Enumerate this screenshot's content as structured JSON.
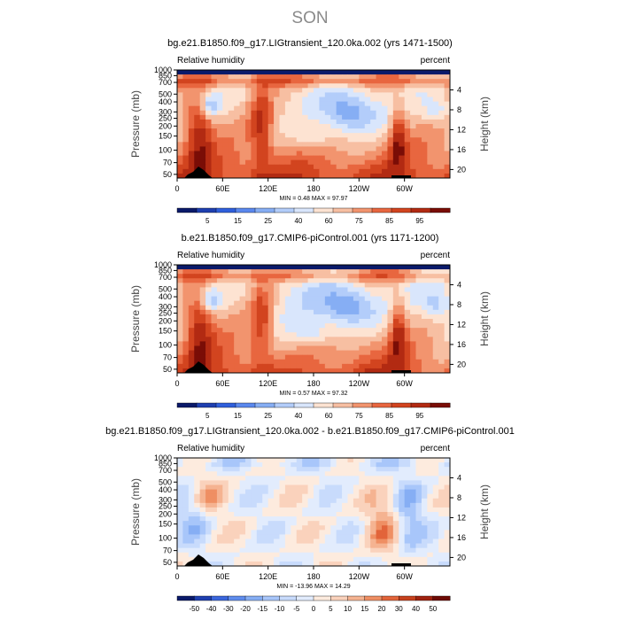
{
  "page_title": "SON",
  "chart_data": [
    {
      "type": "heatmap",
      "title": "bg.e21.B1850.f09_g17.LIGtransient_120.0ka.002 (yrs 1471-1500)",
      "subtitle_left": "Relative humidity",
      "subtitle_right": "percent",
      "ylabel": "Pressure (mb)",
      "ylabel_right": "Height (km)",
      "x_ticks": [
        "0",
        "60E",
        "120E",
        "180",
        "120W",
        "60W"
      ],
      "y_ticks": [
        "50",
        "70",
        "100",
        "150",
        "200",
        "250",
        "300",
        "400",
        "500",
        "700",
        "850",
        "1000"
      ],
      "height_ticks": [
        "20",
        "16",
        "12",
        "8",
        "4"
      ],
      "stats": "MIN =    0.48   MAX =   97.97",
      "colorbar_labels": [
        "5",
        "15",
        "25",
        "40",
        "60",
        "75",
        "85",
        "95"
      ],
      "colors": [
        "#0a1a6a",
        "#1e3fb0",
        "#2f5fdc",
        "#5a88ee",
        "#86aef4",
        "#b3cdfa",
        "#d9e6fc",
        "#fde3d2",
        "#f7bfa2",
        "#f2946e",
        "#e8663f",
        "#d2441f",
        "#b22a12",
        "#7a0d06"
      ]
    },
    {
      "type": "heatmap",
      "title": "b.e21.B1850.f09_g17.CMIP6-piControl.001 (yrs 1171-1200)",
      "subtitle_left": "Relative humidity",
      "subtitle_right": "percent",
      "ylabel": "Pressure (mb)",
      "ylabel_right": "Height (km)",
      "x_ticks": [
        "0",
        "60E",
        "120E",
        "180",
        "120W",
        "60W"
      ],
      "y_ticks": [
        "50",
        "70",
        "100",
        "150",
        "200",
        "250",
        "300",
        "400",
        "500",
        "700",
        "850",
        "1000"
      ],
      "height_ticks": [
        "20",
        "16",
        "12",
        "8",
        "4"
      ],
      "stats": "MIN =    0.57   MAX =   97.32",
      "colorbar_labels": [
        "5",
        "15",
        "25",
        "40",
        "60",
        "75",
        "85",
        "95"
      ],
      "colors": [
        "#0a1a6a",
        "#1e3fb0",
        "#2f5fdc",
        "#5a88ee",
        "#86aef4",
        "#b3cdfa",
        "#d9e6fc",
        "#fde3d2",
        "#f7bfa2",
        "#f2946e",
        "#e8663f",
        "#d2441f",
        "#b22a12",
        "#7a0d06"
      ]
    },
    {
      "type": "heatmap",
      "title": "bg.e21.B1850.f09_g17.LIGtransient_120.0ka.002 - b.e21.B1850.f09_g17.CMIP6-piControl.001",
      "subtitle_left": "Relative humidity",
      "subtitle_right": "percent",
      "ylabel": "Pressure (mb)",
      "ylabel_right": "Height (km)",
      "x_ticks": [
        "0",
        "60E",
        "120E",
        "180",
        "120W",
        "60W"
      ],
      "y_ticks": [
        "50",
        "70",
        "100",
        "150",
        "200",
        "250",
        "300",
        "400",
        "500",
        "700",
        "850",
        "1000"
      ],
      "height_ticks": [
        "20",
        "16",
        "12",
        "8",
        "4"
      ],
      "stats": "MIN =  -13.96   MAX =   14.29",
      "colorbar_labels": [
        "-50",
        "-40",
        "-30",
        "-20",
        "-15",
        "-10",
        "-5",
        "0",
        "5",
        "10",
        "15",
        "20",
        "30",
        "40",
        "50"
      ],
      "colors": [
        "#0a1a6a",
        "#1e3fb0",
        "#3a66dc",
        "#5f8ded",
        "#86aef4",
        "#a8c6fa",
        "#c8dbfc",
        "#e2ecfd",
        "#fdebde",
        "#fad2bc",
        "#f5b391",
        "#ef8f63",
        "#e2643a",
        "#c7411d",
        "#a02210",
        "#6e0b05"
      ]
    }
  ]
}
